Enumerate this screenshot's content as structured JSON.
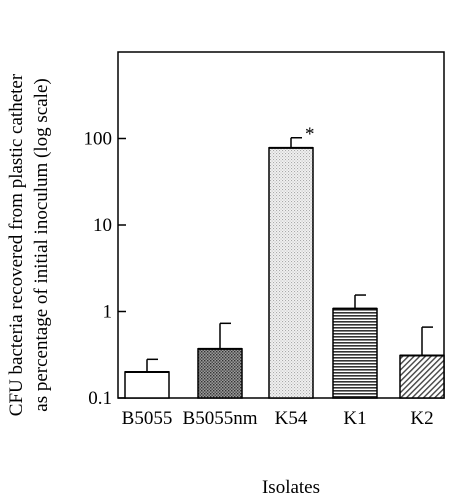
{
  "chart_data": {
    "type": "bar",
    "title": "",
    "xlabel": "Isolates",
    "ylabel_lines": [
      "CFU bacteria recovered from  plastic catheter",
      "as percentage of initial inoculum (log scale)"
    ],
    "yscale": "log",
    "ylim": [
      0.1,
      1000
    ],
    "yticks": [
      0.1,
      1,
      10,
      100
    ],
    "ytick_labels": [
      "0.1",
      "1",
      "10",
      "100"
    ],
    "categories": [
      "B5055",
      "B5055nm",
      "K54",
      "K1",
      "K2"
    ],
    "values": [
      0.2,
      0.37,
      78,
      1.08,
      0.31
    ],
    "error_upper": [
      0.28,
      0.73,
      102,
      1.55,
      0.66
    ],
    "fills": [
      "white",
      "dark-dots",
      "light-dots",
      "horizontal-lines",
      "diagonal-lines"
    ],
    "annotations": [
      {
        "category": "K54",
        "text": "*"
      }
    ],
    "grid": false,
    "legend": "none"
  }
}
